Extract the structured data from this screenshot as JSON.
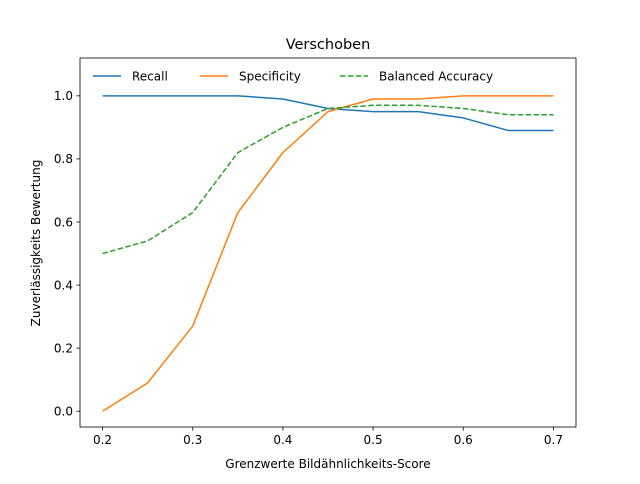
{
  "chart_data": {
    "type": "line",
    "title": "Verschoben",
    "xlabel": "Grenzwerte Bildähnlichkeits-Score",
    "ylabel": "Zuverlässigkeits Bewertung",
    "x": [
      0.2,
      0.25,
      0.3,
      0.35,
      0.4,
      0.45,
      0.5,
      0.55,
      0.6,
      0.65,
      0.7
    ],
    "xlim": [
      0.175,
      0.725
    ],
    "ylim": [
      -0.05,
      1.12
    ],
    "xticks": [
      0.2,
      0.3,
      0.4,
      0.5,
      0.6,
      0.7
    ],
    "xtick_labels": [
      "0.2",
      "0.3",
      "0.4",
      "0.5",
      "0.6",
      "0.7"
    ],
    "yticks": [
      0.0,
      0.2,
      0.4,
      0.6,
      0.8,
      1.0
    ],
    "ytick_labels": [
      "0.0",
      "0.2",
      "0.4",
      "0.6",
      "0.8",
      "1.0"
    ],
    "grid": false,
    "legend_position": "top",
    "series": [
      {
        "name": "Recall",
        "color": "#1f77b4",
        "style": "solid",
        "values": [
          1.0,
          1.0,
          1.0,
          1.0,
          0.99,
          0.96,
          0.95,
          0.95,
          0.93,
          0.89,
          0.89
        ]
      },
      {
        "name": "Specificity",
        "color": "#ff7f0e",
        "style": "solid",
        "values": [
          0.0,
          0.09,
          0.27,
          0.63,
          0.82,
          0.95,
          0.99,
          0.99,
          1.0,
          1.0,
          1.0
        ]
      },
      {
        "name": "Balanced Accuracy",
        "color": "#2ca02c",
        "style": "dashed",
        "values": [
          0.5,
          0.54,
          0.63,
          0.82,
          0.9,
          0.96,
          0.97,
          0.97,
          0.96,
          0.94,
          0.94
        ]
      }
    ]
  }
}
